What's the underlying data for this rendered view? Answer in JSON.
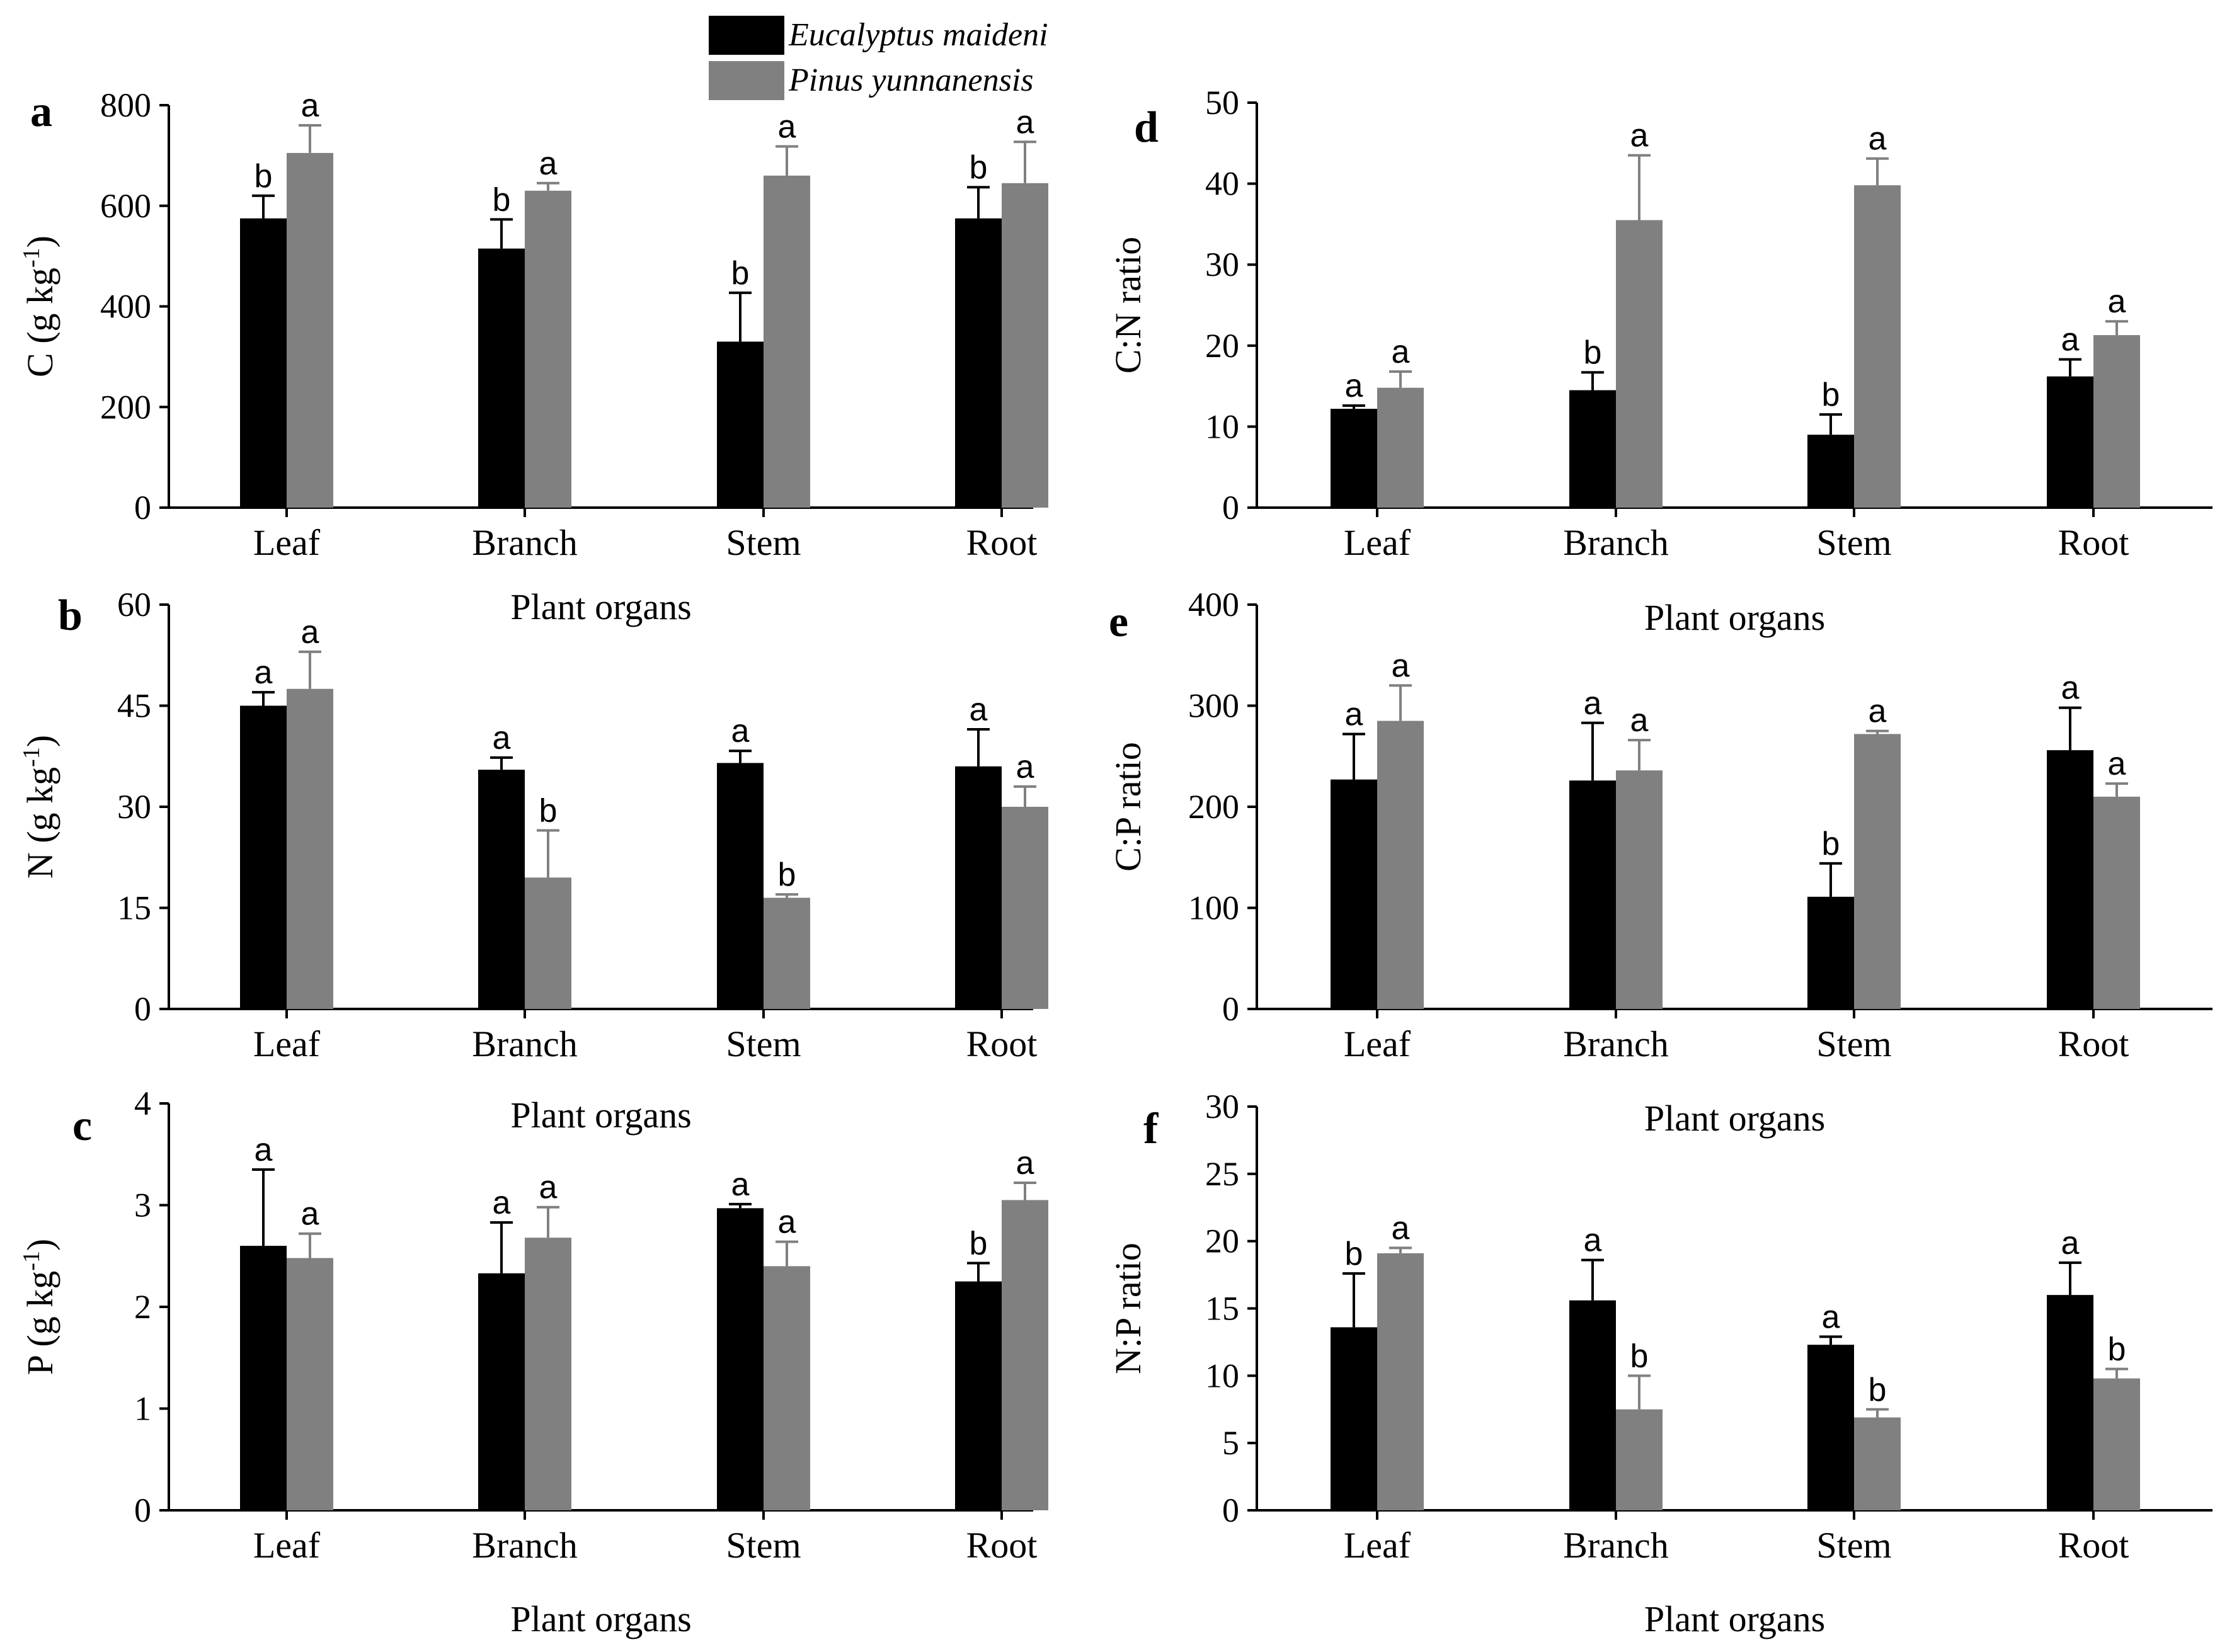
{
  "legend": {
    "entries": [
      {
        "name": "Eucalyptus maideni",
        "color": "#000000"
      },
      {
        "name": "Pinus yunnanensis",
        "color": "#808080"
      }
    ]
  },
  "chart_data": [
    {
      "type": "bar",
      "panel": "a",
      "categories": [
        "Leaf",
        "Branch",
        "Stem",
        "Root"
      ],
      "xlabel": "Plant organs",
      "ylabel": "C (g kg-1)",
      "ylim": [
        0,
        800
      ],
      "yticks": [
        0,
        200,
        400,
        600,
        800
      ],
      "series": [
        {
          "name": "Eucalyptus maideni",
          "values": [
            575,
            515,
            330,
            575
          ],
          "errors": [
            45,
            58,
            97,
            62
          ],
          "letters": [
            "b",
            "b",
            "b",
            "b"
          ]
        },
        {
          "name": "Pinus yunnanensis",
          "values": [
            705,
            630,
            660,
            645
          ],
          "errors": [
            55,
            15,
            58,
            82
          ],
          "letters": [
            "a",
            "a",
            "a",
            "a"
          ]
        }
      ]
    },
    {
      "type": "bar",
      "panel": "b",
      "categories": [
        "Leaf",
        "Branch",
        "Stem",
        "Root"
      ],
      "xlabel": "Plant organs",
      "ylabel": "N (g kg-1)",
      "ylim": [
        0,
        60
      ],
      "yticks": [
        0,
        15,
        30,
        45,
        60
      ],
      "series": [
        {
          "name": "Eucalyptus maideni",
          "values": [
            45,
            35.5,
            36.5,
            36
          ],
          "errors": [
            2,
            1.8,
            1.8,
            5.5
          ],
          "letters": [
            "a",
            "a",
            "a",
            "a"
          ]
        },
        {
          "name": "Pinus yunnanensis",
          "values": [
            47.5,
            19.5,
            16.5,
            30
          ],
          "errors": [
            5.5,
            7,
            0.5,
            3
          ],
          "letters": [
            "a",
            "b",
            "b",
            "a"
          ]
        }
      ]
    },
    {
      "type": "bar",
      "panel": "c",
      "categories": [
        "Leaf",
        "Branch",
        "Stem",
        "Root"
      ],
      "xlabel": "Plant organs",
      "ylabel": "P (g kg-1)",
      "ylim": [
        0,
        4
      ],
      "yticks": [
        0,
        1,
        2,
        3,
        4
      ],
      "series": [
        {
          "name": "Eucalyptus maideni",
          "values": [
            2.6,
            2.33,
            2.97,
            2.25
          ],
          "errors": [
            0.75,
            0.5,
            0.04,
            0.18
          ],
          "letters": [
            "a",
            "a",
            "a",
            "b"
          ]
        },
        {
          "name": "Pinus yunnanensis",
          "values": [
            2.48,
            2.68,
            2.4,
            3.05
          ],
          "errors": [
            0.24,
            0.3,
            0.24,
            0.17
          ],
          "letters": [
            "a",
            "a",
            "a",
            "a"
          ]
        }
      ]
    },
    {
      "type": "bar",
      "panel": "d",
      "categories": [
        "Leaf",
        "Branch",
        "Stem",
        "Root"
      ],
      "xlabel": "Plant organs",
      "ylabel": "C:N ratio",
      "ylim": [
        0,
        50
      ],
      "yticks": [
        0,
        10,
        20,
        30,
        40,
        50
      ],
      "series": [
        {
          "name": "Eucalyptus maideni",
          "values": [
            12.2,
            14.5,
            9,
            16.2
          ],
          "errors": [
            0.4,
            2.2,
            2.5,
            2.1
          ],
          "letters": [
            "a",
            "b",
            "b",
            "a"
          ]
        },
        {
          "name": "Pinus yunnanensis",
          "values": [
            14.8,
            35.5,
            39.8,
            21.3
          ],
          "errors": [
            2,
            8,
            3.3,
            1.7
          ],
          "letters": [
            "a",
            "a",
            "a",
            "a"
          ]
        }
      ]
    },
    {
      "type": "bar",
      "panel": "e",
      "categories": [
        "Leaf",
        "Branch",
        "Stem",
        "Root"
      ],
      "xlabel": "Plant organs",
      "ylabel": "C:P ratio",
      "ylim": [
        0,
        400
      ],
      "yticks": [
        0,
        100,
        200,
        300,
        400
      ],
      "series": [
        {
          "name": "Eucalyptus maideni",
          "values": [
            227,
            226,
            111,
            256
          ],
          "errors": [
            45,
            57,
            33,
            42
          ],
          "letters": [
            "a",
            "a",
            "b",
            "a"
          ]
        },
        {
          "name": "Pinus yunnanensis",
          "values": [
            285,
            236,
            272,
            210
          ],
          "errors": [
            35,
            30,
            3,
            13
          ],
          "letters": [
            "a",
            "a",
            "a",
            "a"
          ]
        }
      ]
    },
    {
      "type": "bar",
      "panel": "f",
      "categories": [
        "Leaf",
        "Branch",
        "Stem",
        "Root"
      ],
      "xlabel": "Plant organs",
      "ylabel": "N:P ratio",
      "ylim": [
        0,
        30
      ],
      "yticks": [
        0,
        5,
        10,
        15,
        20,
        25,
        30
      ],
      "series": [
        {
          "name": "Eucalyptus maideni",
          "values": [
            13.6,
            15.6,
            12.3,
            16
          ],
          "errors": [
            4,
            3,
            0.6,
            2.4
          ],
          "letters": [
            "b",
            "a",
            "a",
            "a"
          ]
        },
        {
          "name": "Pinus yunnanensis",
          "values": [
            19.1,
            7.5,
            6.9,
            9.8
          ],
          "errors": [
            0.4,
            2.5,
            0.6,
            0.7
          ],
          "letters": [
            "a",
            "b",
            "b",
            "b"
          ]
        }
      ]
    }
  ]
}
